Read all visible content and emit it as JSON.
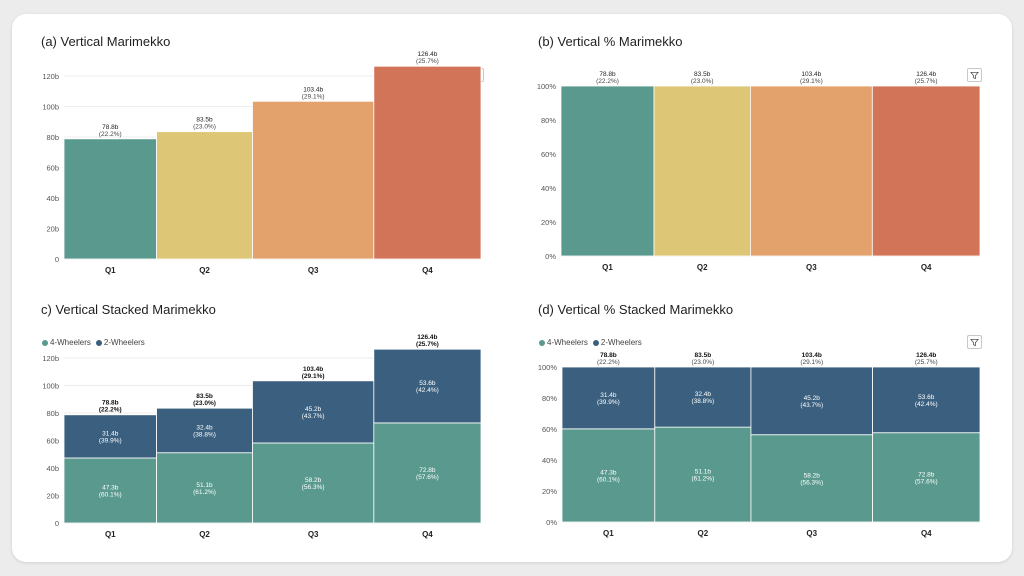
{
  "colors": {
    "q1": "#5a9a8e",
    "q2": "#dec677",
    "q3": "#e3a16b",
    "q4": "#d17457",
    "four_wheelers": "#5a9a8e",
    "two_wheelers": "#3b607f"
  },
  "icons": {
    "filter": "filter-icon"
  },
  "charts": {
    "a": {
      "title": "(a) Vertical Marimekko"
    },
    "b": {
      "title": "(b) Vertical % Marimekko"
    },
    "c": {
      "title": "c) Vertical Stacked Marimekko",
      "legend": [
        {
          "label": "4-Wheelers",
          "color": "#5a9a8e"
        },
        {
          "label": "2-Wheelers",
          "color": "#3b607f"
        }
      ]
    },
    "d": {
      "title": "(d) Vertical % Stacked Marimekko",
      "legend": [
        {
          "label": "4-Wheelers",
          "color": "#5a9a8e"
        },
        {
          "label": "2-Wheelers",
          "color": "#3b607f"
        }
      ]
    }
  },
  "chart_data": [
    {
      "id": "a",
      "type": "bar",
      "title": "(a) Vertical Marimekko",
      "categories": [
        "Q1",
        "Q2",
        "Q3",
        "Q4"
      ],
      "values": [
        78.8,
        83.5,
        103.4,
        126.4
      ],
      "widths": [
        22.2,
        23.0,
        29.1,
        25.7
      ],
      "value_labels": [
        "78.8b",
        "83.5b",
        "103.4b",
        "126.4b"
      ],
      "share_labels": [
        "(22.2%)",
        "(23.0%)",
        "(29.1%)",
        "(25.7%)"
      ],
      "ylim": [
        0,
        120
      ],
      "ytick_values": [
        0,
        20,
        40,
        60,
        80,
        100,
        120
      ],
      "ytick_labels": [
        "0",
        "20b",
        "40b",
        "60b",
        "80b",
        "100b",
        "120b"
      ],
      "grid": true
    },
    {
      "id": "b",
      "type": "bar",
      "title": "(b) Vertical % Marimekko",
      "categories": [
        "Q1",
        "Q2",
        "Q3",
        "Q4"
      ],
      "values": [
        100,
        100,
        100,
        100
      ],
      "widths": [
        22.2,
        23.0,
        29.1,
        25.7
      ],
      "value_labels": [
        "78.8b",
        "83.5b",
        "103.4b",
        "126.4b"
      ],
      "share_labels": [
        "(22.2%)",
        "(23.0%)",
        "(29.1%)",
        "(25.7%)"
      ],
      "ylim": [
        0,
        100
      ],
      "ytick_values": [
        0,
        20,
        40,
        60,
        80,
        100
      ],
      "ytick_labels": [
        "0%",
        "20%",
        "40%",
        "60%",
        "80%",
        "100%"
      ],
      "grid": true
    },
    {
      "id": "c",
      "type": "bar",
      "title": "c) Vertical Stacked Marimekko",
      "categories": [
        "Q1",
        "Q2",
        "Q3",
        "Q4"
      ],
      "widths": [
        22.2,
        23.0,
        29.1,
        25.7
      ],
      "totals": [
        78.8,
        83.5,
        103.4,
        126.4
      ],
      "total_labels": [
        "78.8b",
        "83.5b",
        "103.4b",
        "126.4b"
      ],
      "share_labels": [
        "(22.2%)",
        "(23.0%)",
        "(29.1%)",
        "(25.7%)"
      ],
      "series": [
        {
          "name": "4-Wheelers",
          "values": [
            47.3,
            51.1,
            58.2,
            72.8
          ],
          "labels": [
            "47.3b",
            "51.1b",
            "58.2b",
            "72.8b"
          ],
          "pct_labels": [
            "(60.1%)",
            "(61.2%)",
            "(56.3%)",
            "(57.6%)"
          ]
        },
        {
          "name": "2-Wheelers",
          "values": [
            31.4,
            32.4,
            45.2,
            53.6
          ],
          "labels": [
            "31.4b",
            "32.4b",
            "45.2b",
            "53.6b"
          ],
          "pct_labels": [
            "(39.9%)",
            "(38.8%)",
            "(43.7%)",
            "(42.4%)"
          ]
        }
      ],
      "ylim": [
        0,
        120
      ],
      "ytick_values": [
        0,
        20,
        40,
        60,
        80,
        100,
        120
      ],
      "ytick_labels": [
        "0",
        "20b",
        "40b",
        "60b",
        "80b",
        "100b",
        "120b"
      ],
      "legend": "top-left",
      "grid": true
    },
    {
      "id": "d",
      "type": "bar",
      "title": "(d) Vertical % Stacked Marimekko",
      "categories": [
        "Q1",
        "Q2",
        "Q3",
        "Q4"
      ],
      "widths": [
        22.2,
        23.0,
        29.1,
        25.7
      ],
      "total_labels": [
        "78.8b",
        "83.5b",
        "103.4b",
        "126.4b"
      ],
      "share_labels": [
        "(22.2%)",
        "(23.0%)",
        "(29.1%)",
        "(25.7%)"
      ],
      "series": [
        {
          "name": "4-Wheelers",
          "values": [
            60.1,
            61.2,
            56.3,
            57.6
          ],
          "labels": [
            "47.3b",
            "51.1b",
            "58.2b",
            "72.8b"
          ],
          "pct_labels": [
            "(60.1%)",
            "(61.2%)",
            "(56.3%)",
            "(57.6%)"
          ]
        },
        {
          "name": "2-Wheelers",
          "values": [
            39.9,
            38.8,
            43.7,
            42.4
          ],
          "labels": [
            "31.4b",
            "32.4b",
            "45.2b",
            "53.6b"
          ],
          "pct_labels": [
            "(39.9%)",
            "(38.8%)",
            "(43.7%)",
            "(42.4%)"
          ]
        }
      ],
      "ylim": [
        0,
        100
      ],
      "ytick_values": [
        0,
        20,
        40,
        60,
        80,
        100
      ],
      "ytick_labels": [
        "0%",
        "20%",
        "40%",
        "60%",
        "80%",
        "100%"
      ],
      "legend": "top-left",
      "grid": true
    }
  ]
}
